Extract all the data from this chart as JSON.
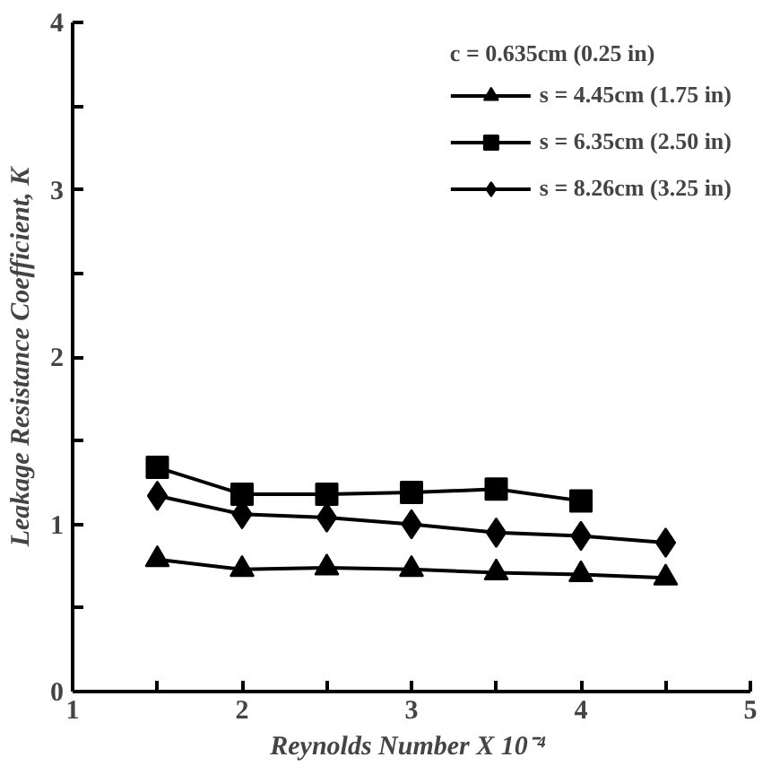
{
  "chart_data": {
    "type": "line",
    "xlabel": "Reynolds Number  X 10⁻⁴",
    "ylabel": "Leakage Resistance Coefficient, K",
    "legend_title": "c = 0.635cm (0.25 in)",
    "legend": "top right",
    "grid": false,
    "line_style": "solid",
    "xlim": [
      1,
      5
    ],
    "ylim": [
      0,
      4
    ],
    "xticks": [
      1,
      {
        "value": 1.5,
        "label": null
      },
      2,
      {
        "value": 2.5,
        "label": null
      },
      3,
      {
        "value": 3.5,
        "label": null
      },
      4,
      {
        "value": 4.5,
        "label": null
      },
      5
    ],
    "yticks": [
      0,
      {
        "value": 0.5,
        "label": null
      },
      1,
      {
        "value": 1.5,
        "label": null
      },
      2,
      {
        "value": 2.5,
        "label": null
      },
      3,
      {
        "value": 3.5,
        "label": null
      },
      4
    ],
    "series": [
      {
        "name": "s = 4.45cm (1.75 in)",
        "color": "#000000",
        "marker": "triangle",
        "x": [
          1.5,
          2,
          2.5,
          3,
          3.5,
          4,
          4.5
        ],
        "values": [
          0.79,
          0.73,
          0.74,
          0.73,
          0.71,
          0.7,
          0.68
        ]
      },
      {
        "name": "s = 6.35cm (2.50 in)",
        "color": "#000000",
        "marker": "square",
        "x": [
          1.5,
          2,
          2.5,
          3,
          3.5,
          4
        ],
        "values": [
          1.34,
          1.18,
          1.18,
          1.19,
          1.21,
          1.14
        ]
      },
      {
        "name": "s = 8.26cm (3.25 in)",
        "color": "#000000",
        "marker": "diamond",
        "x": [
          1.5,
          2,
          2.5,
          3,
          3.5,
          4,
          4.5
        ],
        "values": [
          1.17,
          1.06,
          1.04,
          1.0,
          0.95,
          0.93,
          0.89
        ]
      }
    ]
  }
}
